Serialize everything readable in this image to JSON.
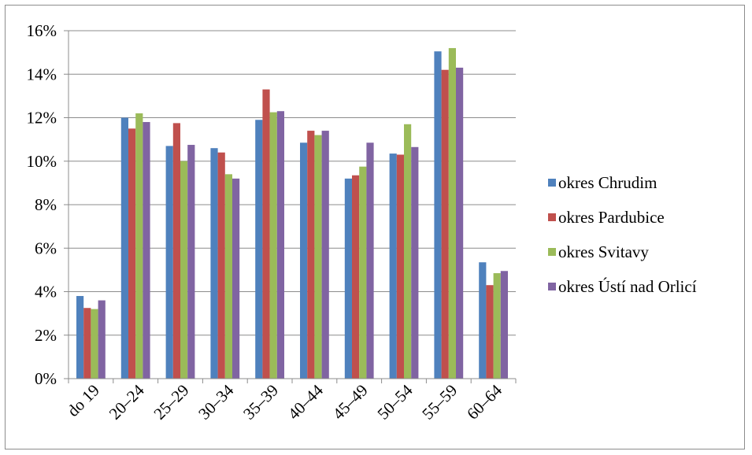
{
  "chart_data": {
    "type": "bar",
    "title": "",
    "xlabel": "",
    "ylabel": "",
    "categories": [
      "do 19",
      "20–24",
      "25–29",
      "30–34",
      "35–39",
      "40–44",
      "45–49",
      "50–54",
      "55–59",
      "60–64"
    ],
    "ylim": [
      0,
      16
    ],
    "yticks": [
      "0%",
      "2%",
      "4%",
      "6%",
      "8%",
      "10%",
      "12%",
      "14%",
      "16%"
    ],
    "grid": true,
    "legend_position": "right",
    "series": [
      {
        "name": "okres Chrudim",
        "color": "#4f81bd",
        "values": [
          3.8,
          12.0,
          10.7,
          10.6,
          11.9,
          10.85,
          9.2,
          10.35,
          15.05,
          5.35
        ]
      },
      {
        "name": "okres Pardubice",
        "color": "#c0504d",
        "values": [
          3.25,
          11.5,
          11.75,
          10.4,
          13.3,
          11.4,
          9.35,
          10.3,
          14.2,
          4.3
        ]
      },
      {
        "name": "okres Svitavy",
        "color": "#9bbb59",
        "values": [
          3.2,
          12.2,
          10.0,
          9.4,
          12.25,
          11.2,
          9.75,
          11.7,
          15.2,
          4.85
        ]
      },
      {
        "name": "okres Ústí nad Orlicí",
        "color": "#8064a2",
        "values": [
          3.6,
          11.8,
          10.75,
          9.2,
          12.3,
          11.4,
          10.85,
          10.65,
          14.3,
          4.95
        ]
      }
    ]
  }
}
